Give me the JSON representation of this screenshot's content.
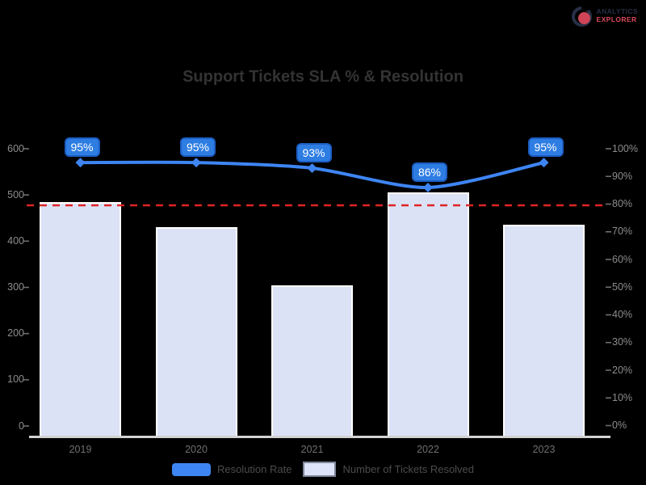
{
  "logo": {
    "line1": "ANALYTICS",
    "line2": "EXPLORER"
  },
  "chart_data": {
    "type": "combo(bar+line)",
    "title": "Support Tickets SLA % & Resolution",
    "categories": [
      "2019",
      "2020",
      "2021",
      "2022",
      "2023"
    ],
    "series": [
      {
        "name": "Resolution Rate",
        "type": "line",
        "yaxis": "right",
        "unit": "%",
        "color": "#3e85f3",
        "values": [
          95,
          95,
          93,
          86,
          95
        ],
        "point_labels": [
          "95%",
          "95%",
          "93%",
          "86%",
          "95%"
        ]
      },
      {
        "name": "Number of Tickets Resolved",
        "type": "bar",
        "yaxis": "left",
        "color": "#dbe2f6",
        "values": [
          485,
          430,
          305,
          505,
          435
        ]
      }
    ],
    "threshold_line": {
      "axis": "right",
      "value": 80,
      "color": "#e02424",
      "style": "dashed"
    },
    "left_axis": {
      "min": 0,
      "max": 600,
      "tick_labels": [
        "600",
        "500",
        "400",
        "300",
        "200",
        "100",
        "0"
      ]
    },
    "right_axis": {
      "min": 0,
      "max": 100,
      "tick_labels": [
        "100%",
        "90%",
        "80%",
        "70%",
        "60%",
        "50%",
        "40%",
        "30%",
        "20%",
        "10%",
        "0%"
      ]
    },
    "legend": {
      "line_label": "Resolution Rate",
      "bar_label": "Number of Tickets Resolved"
    },
    "layout": {
      "grid": false,
      "legend_position": "bottom",
      "background": "transparent"
    }
  }
}
